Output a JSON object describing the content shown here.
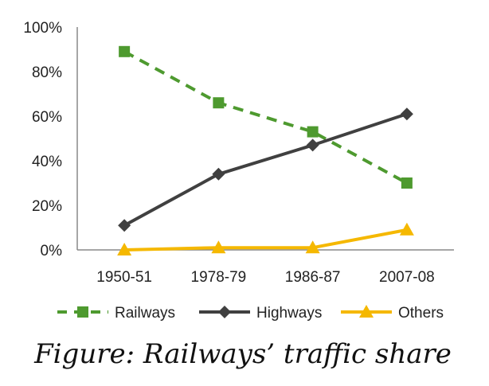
{
  "chart_data": {
    "type": "line",
    "title": "",
    "caption": "Figure: Railways’ traffic share",
    "xlabel": "",
    "ylabel": "",
    "categories": [
      "1950-51",
      "1978-79",
      "1986-87",
      "2007-08"
    ],
    "ylim": [
      0,
      100
    ],
    "yticks": [
      "0%",
      "20%",
      "40%",
      "60%",
      "80%",
      "100%"
    ],
    "grid": false,
    "legend_position": "bottom",
    "series": [
      {
        "name": "Railways",
        "values": [
          89,
          66,
          53,
          30
        ],
        "color": "#4e9a2f",
        "style": "dashed",
        "marker": "square"
      },
      {
        "name": "Highways",
        "values": [
          11,
          34,
          47,
          61
        ],
        "color": "#404040",
        "style": "solid",
        "marker": "diamond"
      },
      {
        "name": "Others",
        "values": [
          0,
          1,
          1,
          9
        ],
        "color": "#f5b800",
        "style": "solid",
        "marker": "triangle"
      }
    ]
  }
}
